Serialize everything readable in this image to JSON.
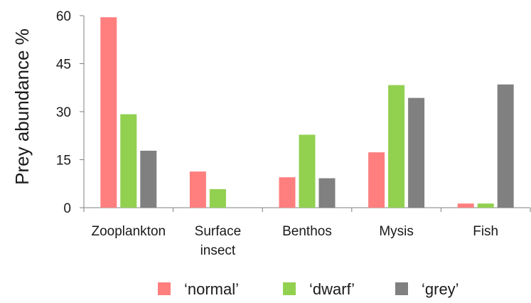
{
  "chart_data": {
    "type": "bar",
    "title": "",
    "xlabel": "",
    "ylabel": "Prey abundance %",
    "ylim": [
      0,
      60
    ],
    "yticks": [
      0,
      15,
      30,
      45,
      60
    ],
    "categories": [
      "Zooplankton",
      "Surface\ninsect",
      "Benthos",
      "Mysis",
      "Fish"
    ],
    "series": [
      {
        "name": "‘normal’",
        "color": "#ff7f7f",
        "values": [
          59.5,
          11.3,
          9.5,
          17.3,
          1.3
        ]
      },
      {
        "name": "‘dwarf’",
        "color": "#92d050",
        "values": [
          29.2,
          5.8,
          22.8,
          38.3,
          1.3
        ]
      },
      {
        "name": "‘grey’",
        "color": "#808080",
        "values": [
          17.8,
          0,
          9.2,
          34.3,
          38.5
        ]
      }
    ],
    "grid": false,
    "legend_position": "bottom"
  }
}
